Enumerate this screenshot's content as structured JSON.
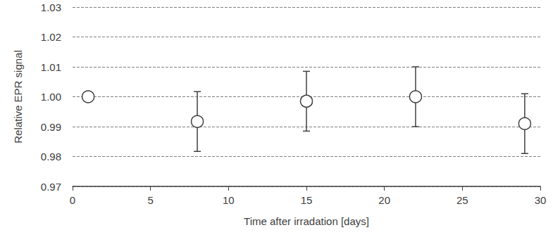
{
  "chart_data": {
    "type": "scatter",
    "x_label": "Time after irradation [days]",
    "y_label": "Relative EPR signal",
    "x": [
      1,
      8,
      15,
      22,
      29
    ],
    "values": [
      1.0,
      0.9917,
      0.9985,
      1.0,
      0.991
    ],
    "errors": [
      null,
      0.01,
      0.01,
      0.01,
      0.01
    ],
    "color": "#404040",
    "marker": "circle",
    "xlim": [
      0,
      30
    ],
    "xticks": [
      0,
      5,
      10,
      15,
      20,
      25,
      30
    ],
    "ylim": [
      0.97,
      1.03
    ],
    "yticks": [
      0.97,
      0.98,
      0.99,
      {
        "value": 1,
        "label": "1.00"
      },
      1.01,
      1.02,
      1.03
    ],
    "grid": true
  }
}
